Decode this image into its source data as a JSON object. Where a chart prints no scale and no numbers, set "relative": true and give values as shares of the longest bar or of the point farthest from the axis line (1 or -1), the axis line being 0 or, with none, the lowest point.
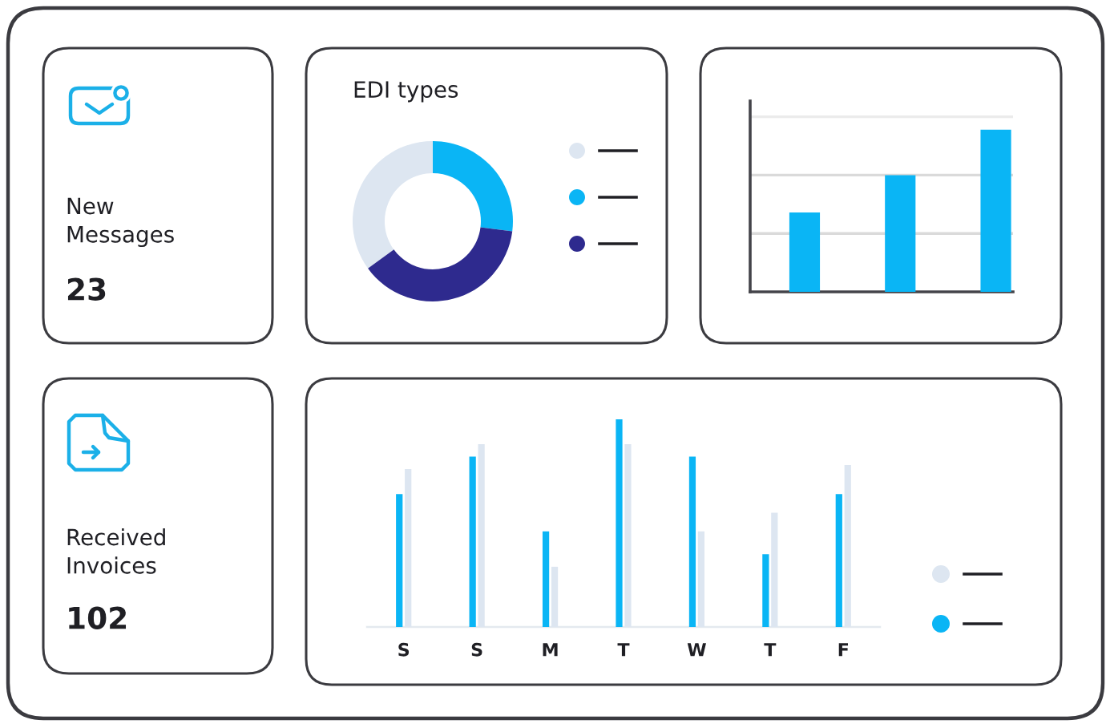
{
  "chart_data": [
    {
      "type": "other",
      "title": "New Messages",
      "annotations": [
        "23"
      ]
    },
    {
      "type": "donut",
      "title": "EDI types",
      "categories": [
        null,
        null,
        null
      ],
      "values": [
        35,
        27,
        38
      ],
      "colors": [
        "#dde6f1",
        "#0ab5f5",
        "#2e2a8e"
      ]
    },
    {
      "type": "bar",
      "categories": [
        null,
        null,
        null
      ],
      "values": [
        0.49,
        0.72,
        1
      ],
      "color": "#0ab5f5",
      "relative": true,
      "tick_labels": false,
      "ref_lines": [
        {
          "axis": "y",
          "value": 0.36,
          "color": "#dadada"
        },
        {
          "axis": "y",
          "value": 0.72,
          "color": "#dadada"
        },
        {
          "axis": "y",
          "value": 1.08,
          "color": "#ebebeb"
        }
      ]
    },
    {
      "type": "other",
      "title": "Received Invoices",
      "annotations": [
        "102"
      ]
    },
    {
      "type": "bar",
      "categories": [
        "S",
        "S",
        "M",
        "T",
        "W",
        "T",
        "F"
      ],
      "series": [
        {
          "color": "#0ab5f5",
          "values": [
            0.64,
            0.82,
            0.46,
            1,
            0.82,
            0.35,
            0.64
          ]
        },
        {
          "color": "#dde6f1",
          "values": [
            0.76,
            0.88,
            0.29,
            0.88,
            0.46,
            0.55,
            0.78
          ]
        }
      ],
      "relative": true,
      "tick_labels": "x"
    }
  ]
}
